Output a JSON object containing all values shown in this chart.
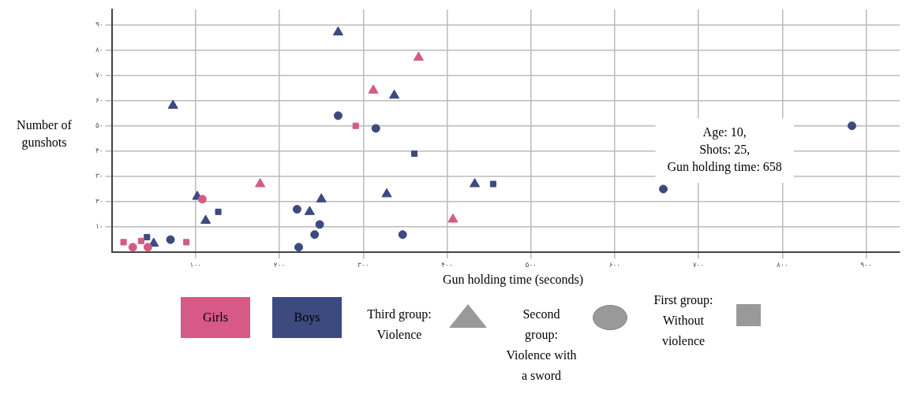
{
  "chart_data": {
    "type": "scatter",
    "xlabel": "Gun holding time (seconds)",
    "ylabel": "Number of gunshots",
    "xlim": [
      0,
      940
    ],
    "ylim": [
      0,
      96
    ],
    "xticks": [
      {
        "value": 100,
        "label": "۱۰۰"
      },
      {
        "value": 200,
        "label": "۲۰۰"
      },
      {
        "value": 300,
        "label": "۳۰۰"
      },
      {
        "value": 400,
        "label": "۴۰۰"
      },
      {
        "value": 500,
        "label": "۵۰۰"
      },
      {
        "value": 600,
        "label": "۶۰۰"
      },
      {
        "value": 700,
        "label": "۷۰۰"
      },
      {
        "value": 800,
        "label": "۸۰۰"
      },
      {
        "value": 900,
        "label": "۹۰۰"
      }
    ],
    "yticks": [
      {
        "value": 10,
        "label": "۱۰"
      },
      {
        "value": 20,
        "label": "۲۰"
      },
      {
        "value": 30,
        "label": "۳۰"
      },
      {
        "value": 40,
        "label": "۴۰"
      },
      {
        "value": 50,
        "label": "۵۰"
      },
      {
        "value": 60,
        "label": "۶۰"
      },
      {
        "value": 70,
        "label": "۷۰"
      },
      {
        "value": 80,
        "label": "۸۰"
      },
      {
        "value": 90,
        "label": "۹۰"
      }
    ],
    "grid": true,
    "series": [
      {
        "color": "#d65a85",
        "marker": "triangle",
        "x": [
          177,
          312,
          366,
          407
        ],
        "values": [
          27,
          64,
          77,
          13
        ]
      },
      {
        "color": "#d65a85",
        "marker": "circle",
        "x": [
          25,
          43,
          108
        ],
        "values": [
          2,
          2,
          21
        ]
      },
      {
        "color": "#d65a85",
        "marker": "square",
        "x": [
          14,
          35,
          89,
          291
        ],
        "values": [
          4,
          4.5,
          4,
          50
        ]
      },
      {
        "color": "#3d4a80",
        "marker": "triangle",
        "x": [
          50,
          73,
          102,
          112,
          236,
          250,
          270,
          328,
          337,
          433
        ],
        "values": [
          3.5,
          58,
          22,
          12.5,
          16,
          21,
          87,
          23,
          62,
          27
        ]
      },
      {
        "color": "#3d4a80",
        "marker": "circle",
        "x": [
          70,
          221,
          223,
          242,
          248,
          270,
          315,
          347,
          658,
          883
        ],
        "values": [
          5,
          17,
          2,
          7,
          11,
          54,
          49,
          7,
          25,
          50
        ]
      },
      {
        "color": "#3d4a80",
        "marker": "square",
        "x": [
          42,
          127,
          361,
          455
        ],
        "values": [
          6,
          16,
          39,
          27
        ]
      }
    ],
    "annotations": [
      {
        "text": "Age: 10,\nShots: 25,\nGun holding time: 658",
        "x": 658,
        "y": 25
      },
      "Girls",
      "Boys",
      "Third group: Violence",
      "Second group: Violence with a sword",
      "First group: Without violence"
    ]
  }
}
